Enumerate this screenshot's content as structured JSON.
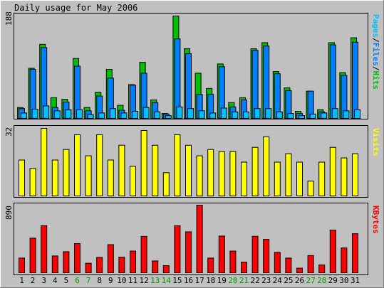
{
  "colors": {
    "background": "#c0c0c0",
    "hits": "#00c000",
    "files": "#0080ff",
    "pages": "#00c0ff",
    "visits": "#ffff00",
    "kbytes": "#ff0000",
    "weekend_label": "#00a000",
    "weekday_label": "#000000"
  },
  "chart_data": [
    {
      "type": "bar",
      "title": "Daily usage for May 2006",
      "categories": [
        "1",
        "2",
        "3",
        "4",
        "5",
        "6",
        "7",
        "8",
        "9",
        "10",
        "11",
        "12",
        "13",
        "14",
        "15",
        "16",
        "17",
        "18",
        "19",
        "20",
        "21",
        "22",
        "23",
        "24",
        "25",
        "26",
        "27",
        "28",
        "29",
        "30",
        "31"
      ],
      "weekend_days": [
        "6",
        "7",
        "13",
        "14",
        "20",
        "21",
        "27",
        "28"
      ],
      "y_tick_label": "188",
      "ylim": [
        0,
        188
      ],
      "legend": [
        {
          "text": "Pages",
          "color": "#00c0ff"
        },
        {
          "text": "/",
          "color": "#000000"
        },
        {
          "text": "Files",
          "color": "#0080ff"
        },
        {
          "text": "/",
          "color": "#000000"
        },
        {
          "text": "Hits",
          "color": "#00c000"
        }
      ],
      "series": [
        {
          "name": "Hits",
          "values": [
            20,
            92,
            136,
            38,
            35,
            110,
            20,
            48,
            90,
            24,
            62,
            103,
            34,
            9,
            188,
            128,
            83,
            55,
            100,
            29,
            38,
            128,
            139,
            86,
            56,
            13,
            50,
            16,
            139,
            84,
            148
          ]
        },
        {
          "name": "Files",
          "values": [
            18,
            90,
            130,
            20,
            30,
            96,
            14,
            41,
            74,
            15,
            61,
            83,
            29,
            8,
            146,
            119,
            44,
            44,
            95,
            21,
            34,
            125,
            133,
            82,
            51,
            9,
            50,
            12,
            135,
            79,
            140
          ]
        },
        {
          "name": "Pages",
          "values": [
            10,
            17,
            23,
            14,
            16,
            16,
            7,
            10,
            18,
            10,
            13,
            20,
            12,
            5,
            21,
            18,
            14,
            10,
            19,
            12,
            12,
            18,
            18,
            12,
            9,
            5,
            8,
            10,
            18,
            14,
            16
          ]
        }
      ]
    },
    {
      "type": "bar",
      "categories": [
        "1",
        "2",
        "3",
        "4",
        "5",
        "6",
        "7",
        "8",
        "9",
        "10",
        "11",
        "12",
        "13",
        "14",
        "15",
        "16",
        "17",
        "18",
        "19",
        "20",
        "21",
        "22",
        "23",
        "24",
        "25",
        "26",
        "27",
        "28",
        "29",
        "30",
        "31"
      ],
      "y_tick_label": "32",
      "ylim": [
        0,
        32
      ],
      "legend": [
        {
          "text": "Visits",
          "color": "#ffff00"
        }
      ],
      "series": [
        {
          "name": "Visits",
          "values": [
            17,
            13,
            32,
            17,
            22,
            29,
            19,
            29,
            17,
            24,
            14,
            31,
            24,
            11,
            29,
            24,
            19,
            22,
            21,
            21,
            16,
            23,
            28,
            16,
            20,
            16,
            7,
            16,
            23,
            18,
            20
          ]
        }
      ]
    },
    {
      "type": "bar",
      "categories": [
        "1",
        "2",
        "3",
        "4",
        "5",
        "6",
        "7",
        "8",
        "9",
        "10",
        "11",
        "12",
        "13",
        "14",
        "15",
        "16",
        "17",
        "18",
        "19",
        "20",
        "21",
        "22",
        "23",
        "24",
        "25",
        "26",
        "27",
        "28",
        "29",
        "30",
        "31"
      ],
      "y_tick_label": "890",
      "ylim": [
        0,
        890
      ],
      "legend": [
        {
          "text": "KBytes",
          "color": "#ff0000"
        }
      ],
      "series": [
        {
          "name": "KBytes",
          "values": [
            193,
            455,
            620,
            221,
            277,
            384,
            125,
            202,
            370,
            205,
            285,
            479,
            155,
            93,
            619,
            539,
            890,
            193,
            483,
            285,
            139,
            480,
            439,
            268,
            193,
            60,
            226,
            103,
            562,
            327,
            514
          ]
        }
      ]
    }
  ]
}
